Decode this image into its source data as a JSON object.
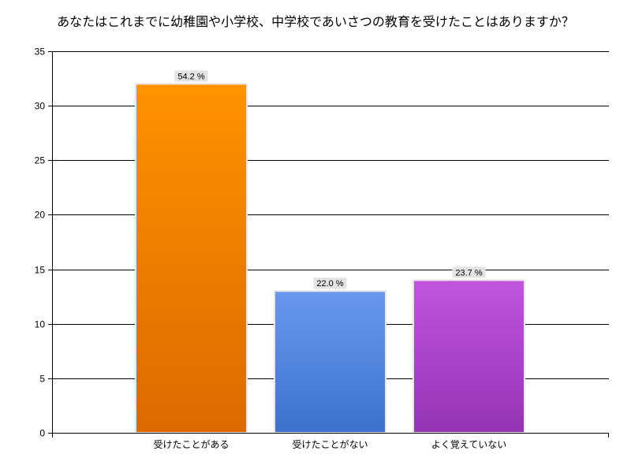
{
  "chart_data": {
    "type": "bar",
    "title": "あなたはこれまでに幼稚園や小学校、中学校であいさつの教育を受けたことはありますか？",
    "xlabel": "",
    "ylabel": "",
    "ylim": [
      0,
      35
    ],
    "yticks": [
      0,
      5,
      10,
      15,
      20,
      25,
      30,
      35
    ],
    "grid": true,
    "categories": [
      "受けたことがある",
      "受けたことがない",
      "よく覚えていない"
    ],
    "values": [
      32,
      13,
      14
    ],
    "data_labels": [
      "54.2 %",
      "22.0 %",
      "23.7 %"
    ],
    "colors": [
      [
        "#ff9200",
        "#dc6a00"
      ],
      [
        "#6a98ee",
        "#3c72cc"
      ],
      [
        "#c055de",
        "#9433b4"
      ]
    ]
  }
}
